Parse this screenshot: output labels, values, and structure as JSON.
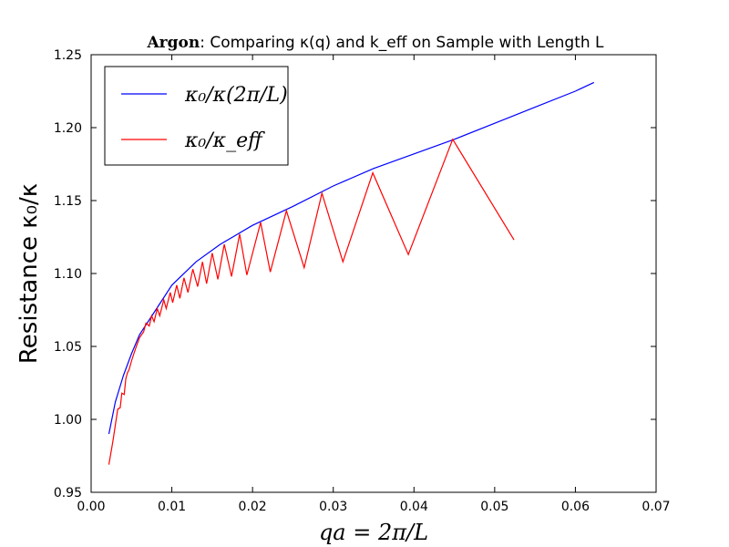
{
  "chart_data": {
    "type": "line",
    "title_bold": "Argon",
    "title_rest": ": Comparing κ(q) and k_eff on Sample with Length L",
    "xlabel": "qa = 2π/L",
    "ylabel": "Resistance κ₀/κ",
    "xlim": [
      0.0,
      0.07
    ],
    "ylim": [
      0.95,
      1.25
    ],
    "xticks": [
      "0.00",
      "0.01",
      "0.02",
      "0.03",
      "0.04",
      "0.05",
      "0.06",
      "0.07"
    ],
    "yticks": [
      "0.95",
      "1.00",
      "1.05",
      "1.10",
      "1.15",
      "1.20",
      "1.25"
    ],
    "legend_position": "upper-left",
    "colors": {
      "blue": "#0000ff",
      "red": "#ff0000"
    },
    "series": [
      {
        "name": "κ₀/κ(2π/L)",
        "color": "#0000ff",
        "points": [
          [
            0.0022,
            0.99
          ],
          [
            0.003,
            1.012
          ],
          [
            0.004,
            1.03
          ],
          [
            0.005,
            1.045
          ],
          [
            0.006,
            1.058
          ],
          [
            0.008,
            1.075
          ],
          [
            0.01,
            1.092
          ],
          [
            0.013,
            1.108
          ],
          [
            0.016,
            1.12
          ],
          [
            0.02,
            1.133
          ],
          [
            0.025,
            1.146
          ],
          [
            0.03,
            1.16
          ],
          [
            0.035,
            1.172
          ],
          [
            0.04,
            1.182
          ],
          [
            0.045,
            1.192
          ],
          [
            0.05,
            1.203
          ],
          [
            0.055,
            1.214
          ],
          [
            0.06,
            1.225
          ],
          [
            0.0623,
            1.231
          ]
        ]
      },
      {
        "name": "κ₀/κ_eff",
        "color": "#ff0000",
        "points": [
          [
            0.0022,
            0.969
          ],
          [
            0.0027,
            0.985
          ],
          [
            0.0033,
            1.007
          ],
          [
            0.0036,
            1.008
          ],
          [
            0.0038,
            1.018
          ],
          [
            0.0041,
            1.017
          ],
          [
            0.0043,
            1.028
          ],
          [
            0.0045,
            1.032
          ],
          [
            0.0047,
            1.034
          ],
          [
            0.005,
            1.04
          ],
          [
            0.0053,
            1.045
          ],
          [
            0.0056,
            1.05
          ],
          [
            0.006,
            1.056
          ],
          [
            0.0065,
            1.06
          ],
          [
            0.0068,
            1.066
          ],
          [
            0.0072,
            1.064
          ],
          [
            0.0075,
            1.071
          ],
          [
            0.0078,
            1.067
          ],
          [
            0.0082,
            1.076
          ],
          [
            0.0085,
            1.071
          ],
          [
            0.009,
            1.082
          ],
          [
            0.0093,
            1.076
          ],
          [
            0.0098,
            1.087
          ],
          [
            0.0101,
            1.08
          ],
          [
            0.0106,
            1.092
          ],
          [
            0.011,
            1.083
          ],
          [
            0.0115,
            1.097
          ],
          [
            0.012,
            1.087
          ],
          [
            0.0126,
            1.103
          ],
          [
            0.0132,
            1.091
          ],
          [
            0.0138,
            1.108
          ],
          [
            0.0143,
            1.093
          ],
          [
            0.015,
            1.114
          ],
          [
            0.0157,
            1.096
          ],
          [
            0.0165,
            1.12
          ],
          [
            0.0174,
            1.098
          ],
          [
            0.0184,
            1.127
          ],
          [
            0.0193,
            1.099
          ],
          [
            0.021,
            1.135
          ],
          [
            0.0222,
            1.101
          ],
          [
            0.0242,
            1.143
          ],
          [
            0.0264,
            1.104
          ],
          [
            0.0286,
            1.155
          ],
          [
            0.0312,
            1.108
          ],
          [
            0.0349,
            1.169
          ],
          [
            0.0393,
            1.113
          ],
          [
            0.0448,
            1.192
          ],
          [
            0.0524,
            1.123
          ]
        ]
      }
    ]
  }
}
